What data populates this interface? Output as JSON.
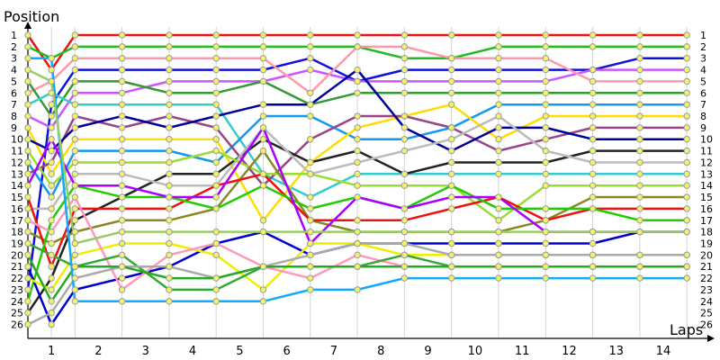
{
  "chart_data": {
    "type": "line",
    "title": "",
    "ylabel": "Position",
    "xlabel": "Laps",
    "x_labels": [
      "1",
      "2",
      "3",
      "4",
      "5",
      "6",
      "7",
      "8",
      "9",
      "10",
      "11",
      "12",
      "13",
      "14"
    ],
    "y_labels": [
      "1",
      "2",
      "3",
      "4",
      "5",
      "6",
      "7",
      "8",
      "9",
      "10",
      "11",
      "12",
      "13",
      "14",
      "15",
      "16",
      "17",
      "18",
      "19",
      "20",
      "21",
      "22",
      "23",
      "24",
      "25",
      "26"
    ],
    "x_points": [
      0,
      0.5,
      1,
      2,
      3,
      4,
      5,
      6,
      7,
      8,
      9,
      10,
      11,
      12,
      13,
      14
    ],
    "ylim": [
      1,
      26
    ],
    "grid": true,
    "series": [
      {
        "color": "#ee1111",
        "values": [
          1,
          4,
          1,
          1,
          1,
          1,
          1,
          1,
          1,
          1,
          1,
          1,
          1,
          1,
          1,
          1
        ]
      },
      {
        "color": "#22bb22",
        "values": [
          2,
          3,
          2,
          2,
          2,
          2,
          2,
          2,
          2,
          3,
          3,
          2,
          2,
          2,
          2,
          2
        ]
      },
      {
        "color": "#1111dd",
        "values": [
          23,
          7,
          4,
          4,
          4,
          4,
          4,
          3,
          5,
          4,
          4,
          4,
          4,
          4,
          3,
          3
        ]
      },
      {
        "color": "#cc55ff",
        "values": [
          8,
          9,
          6,
          6,
          5,
          5,
          5,
          4,
          5,
          5,
          5,
          5,
          5,
          4,
          4,
          4
        ]
      },
      {
        "color": "#ff99aa",
        "values": [
          6,
          5,
          3,
          3,
          3,
          3,
          3,
          6,
          2,
          2,
          3,
          3,
          3,
          5,
          5,
          5
        ]
      },
      {
        "color": "#339933",
        "values": [
          5,
          8,
          5,
          5,
          6,
          6,
          5,
          7,
          6,
          6,
          6,
          6,
          6,
          6,
          6,
          6
        ]
      },
      {
        "color": "#33cccc",
        "values": [
          7,
          6,
          7,
          7,
          7,
          7,
          13,
          15,
          13,
          13,
          13,
          13,
          13,
          13,
          13,
          13
        ]
      },
      {
        "color": "#1199ee",
        "values": [
          12,
          15,
          11,
          11,
          11,
          12,
          8,
          8,
          10,
          10,
          9,
          7,
          7,
          7,
          7,
          7
        ]
      },
      {
        "color": "#ffdd00",
        "values": [
          9,
          13,
          10,
          10,
          10,
          10,
          17,
          12,
          9,
          8,
          7,
          10,
          8,
          8,
          8,
          8
        ]
      },
      {
        "color": "#994488",
        "values": [
          13,
          12,
          8,
          9,
          8,
          9,
          14,
          10,
          8,
          8,
          9,
          11,
          10,
          9,
          9,
          9
        ]
      },
      {
        "color": "#000099",
        "values": [
          10,
          11,
          9,
          8,
          9,
          8,
          7,
          7,
          4,
          9,
          11,
          9,
          9,
          10,
          10,
          10
        ]
      },
      {
        "color": "#222222",
        "values": [
          25,
          22,
          17,
          15,
          13,
          13,
          10,
          12,
          11,
          13,
          12,
          12,
          12,
          11,
          11,
          11
        ]
      },
      {
        "color": "#bbbbbb",
        "values": [
          16,
          16,
          13,
          13,
          14,
          14,
          9,
          13,
          12,
          11,
          10,
          8,
          11,
          12,
          12,
          12
        ]
      },
      {
        "color": "#99dd33",
        "values": [
          11,
          14,
          12,
          12,
          12,
          11,
          13,
          13,
          14,
          14,
          14,
          17,
          14,
          14,
          14,
          14
        ]
      },
      {
        "color": "#888822",
        "values": [
          18,
          19,
          18,
          17,
          17,
          16,
          11,
          17,
          18,
          18,
          18,
          18,
          17,
          15,
          15,
          15
        ]
      },
      {
        "color": "#ee1111",
        "values": [
          15,
          21,
          16,
          16,
          16,
          14,
          13,
          17,
          17,
          17,
          16,
          15,
          17,
          16,
          16,
          16
        ]
      },
      {
        "color": "#22cc00",
        "values": [
          24,
          17,
          14,
          15,
          15,
          16,
          14,
          16,
          15,
          16,
          14,
          16,
          16,
          16,
          17,
          17
        ]
      },
      {
        "color": "#0000cc",
        "values": [
          21,
          26,
          23,
          22,
          21,
          19,
          18,
          20,
          19,
          19,
          19,
          19,
          19,
          19,
          18,
          18
        ]
      },
      {
        "color": "#aa00ff",
        "values": [
          14,
          10,
          14,
          14,
          15,
          15,
          9,
          19,
          15,
          16,
          15,
          15,
          18,
          18,
          18,
          18
        ]
      },
      {
        "color": "#eeee00",
        "values": [
          22,
          23,
          20,
          19,
          19,
          20,
          23,
          19,
          19,
          20,
          20,
          20,
          20,
          20,
          20,
          20
        ]
      },
      {
        "color": "#ff99bb",
        "values": [
          17,
          18,
          15,
          23,
          20,
          19,
          21,
          22,
          20,
          21,
          21,
          21,
          21,
          21,
          21,
          21
        ]
      },
      {
        "color": "#33aa33",
        "values": [
          19,
          20,
          21,
          20,
          23,
          23,
          21,
          21,
          21,
          20,
          21,
          21,
          21,
          21,
          21,
          21
        ]
      },
      {
        "color": "#aaaaaa",
        "values": [
          26,
          25,
          22,
          21,
          21,
          22,
          21,
          20,
          19,
          19,
          20,
          20,
          20,
          20,
          20,
          20
        ]
      },
      {
        "color": "#22aa22",
        "values": [
          20,
          24,
          21,
          21,
          22,
          22,
          21,
          21,
          21,
          21,
          21,
          21,
          21,
          21,
          21,
          21
        ]
      },
      {
        "color": "#11aaff",
        "values": [
          3,
          3,
          24,
          24,
          24,
          24,
          24,
          23,
          23,
          22,
          22,
          22,
          22,
          22,
          22,
          22
        ]
      },
      {
        "color": "#99cc66",
        "values": [
          4,
          5,
          19,
          18,
          18,
          18,
          18,
          18,
          18,
          18,
          18,
          18,
          18,
          18,
          18,
          18
        ]
      }
    ]
  }
}
